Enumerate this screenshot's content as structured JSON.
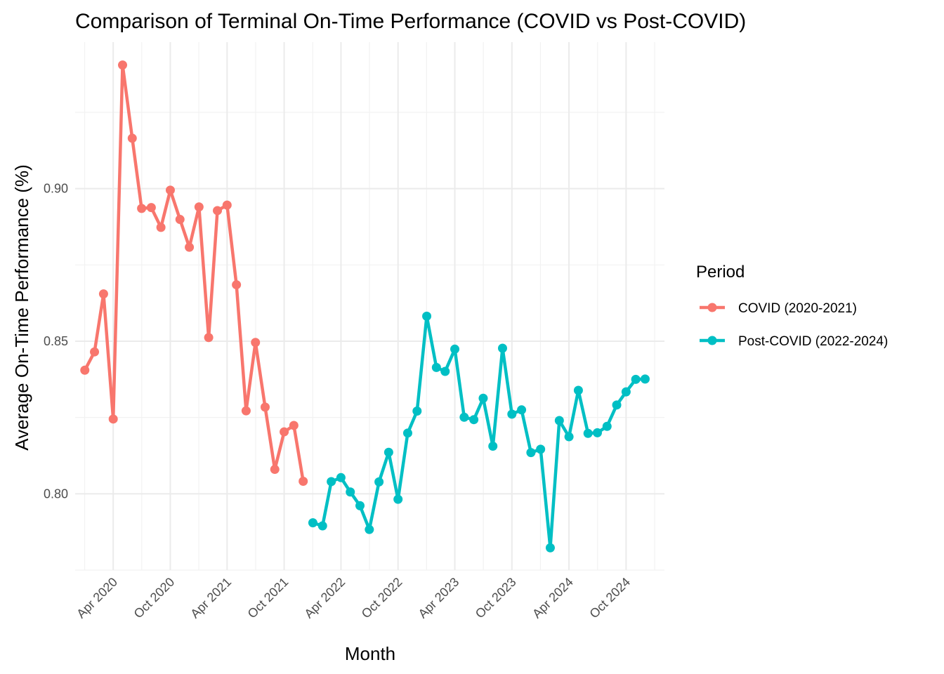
{
  "chart_data": {
    "type": "line",
    "title": "Comparison of Terminal On-Time Performance (COVID vs Post-COVID)",
    "xlabel": "Month",
    "ylabel": "Average On-Time Performance (%)",
    "x_range": [
      "2019-12-01",
      "2025-02-01"
    ],
    "ylim": [
      0.775,
      0.948
    ],
    "x_ticks": [
      {
        "date": "2020-04-01",
        "label": "Apr 2020"
      },
      {
        "date": "2020-10-01",
        "label": "Oct 2020"
      },
      {
        "date": "2021-04-01",
        "label": "Apr 2021"
      },
      {
        "date": "2021-10-01",
        "label": "Oct 2021"
      },
      {
        "date": "2022-04-01",
        "label": "Apr 2022"
      },
      {
        "date": "2022-10-01",
        "label": "Oct 2022"
      },
      {
        "date": "2023-04-01",
        "label": "Apr 2023"
      },
      {
        "date": "2023-10-01",
        "label": "Oct 2023"
      },
      {
        "date": "2024-04-01",
        "label": "Apr 2024"
      },
      {
        "date": "2024-10-01",
        "label": "Oct 2024"
      }
    ],
    "y_ticks": [
      {
        "value": 0.8,
        "label": "0.80"
      },
      {
        "value": 0.85,
        "label": "0.85"
      },
      {
        "value": 0.9,
        "label": "0.90"
      }
    ],
    "grid": true,
    "legend": {
      "title": "Period",
      "position": "right"
    },
    "series": [
      {
        "name": "COVID (2020-2021)",
        "color": "#F8766D",
        "x": [
          "2020-01-01",
          "2020-02-01",
          "2020-03-01",
          "2020-04-01",
          "2020-05-01",
          "2020-06-01",
          "2020-07-01",
          "2020-08-01",
          "2020-09-01",
          "2020-10-01",
          "2020-11-01",
          "2020-12-01",
          "2021-01-01",
          "2021-02-01",
          "2021-03-01",
          "2021-04-01",
          "2021-05-01",
          "2021-06-01",
          "2021-07-01",
          "2021-08-01",
          "2021-09-01",
          "2021-10-01",
          "2021-11-01",
          "2021-12-01"
        ],
        "values": [
          0.8405,
          0.8465,
          0.8655,
          0.8245,
          0.9405,
          0.9165,
          0.8935,
          0.8938,
          0.8873,
          0.8995,
          0.8899,
          0.8808,
          0.894,
          0.8512,
          0.8928,
          0.8946,
          0.8685,
          0.8272,
          0.8496,
          0.8284,
          0.808,
          0.8203,
          0.8224,
          0.8041
        ]
      },
      {
        "name": "Post-COVID (2022-2024)",
        "color": "#00BFC4",
        "x": [
          "2022-01-01",
          "2022-02-01",
          "2022-03-01",
          "2022-04-01",
          "2022-05-01",
          "2022-06-01",
          "2022-07-01",
          "2022-08-01",
          "2022-09-01",
          "2022-10-01",
          "2022-11-01",
          "2022-12-01",
          "2023-01-01",
          "2023-02-01",
          "2023-03-01",
          "2023-04-01",
          "2023-05-01",
          "2023-06-01",
          "2023-07-01",
          "2023-08-01",
          "2023-09-01",
          "2023-10-01",
          "2023-11-01",
          "2023-12-01",
          "2024-01-01",
          "2024-02-01",
          "2024-03-01",
          "2024-04-01",
          "2024-05-01",
          "2024-06-01",
          "2024-07-01",
          "2024-08-01",
          "2024-09-01",
          "2024-10-01",
          "2024-11-01",
          "2024-12-01"
        ],
        "values": [
          0.7905,
          0.7895,
          0.804,
          0.8053,
          0.8006,
          0.7961,
          0.7883,
          0.8039,
          0.8136,
          0.7982,
          0.8199,
          0.8271,
          0.8582,
          0.8414,
          0.8401,
          0.8474,
          0.8251,
          0.8243,
          0.8313,
          0.8156,
          0.8477,
          0.8261,
          0.8275,
          0.8135,
          0.8146,
          0.7823,
          0.824,
          0.8187,
          0.8339,
          0.8198,
          0.82,
          0.8221,
          0.8291,
          0.8334,
          0.8375,
          0.8376
        ]
      }
    ]
  }
}
